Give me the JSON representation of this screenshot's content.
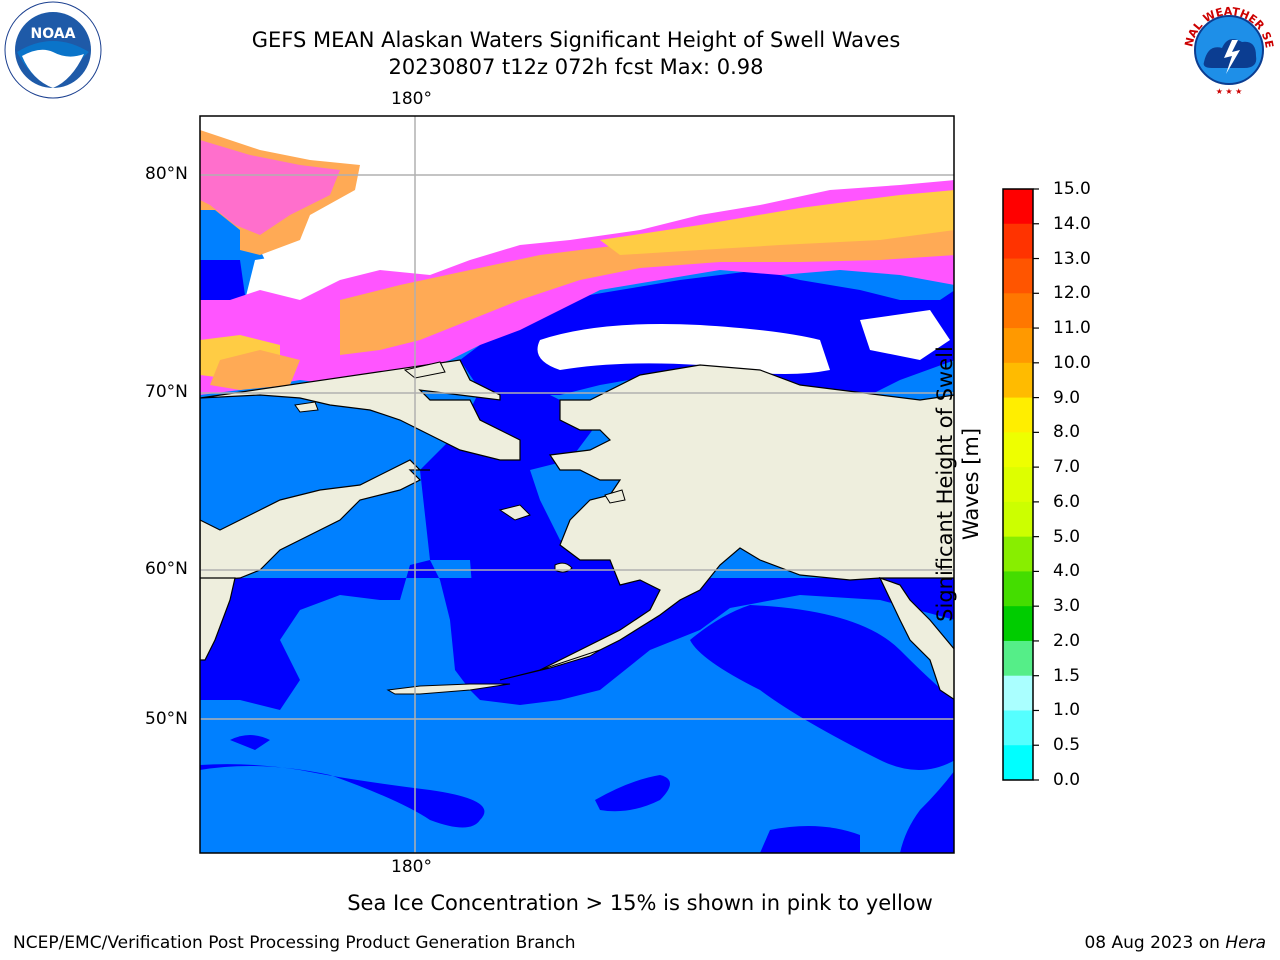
{
  "title": {
    "line1": "GEFS MEAN Alaskan Waters Significant Height of Swell Waves",
    "line2": "20230807 t12z 072h fcst   Max: 0.98"
  },
  "map": {
    "lon_label_top": "180°",
    "lon_label_bottom": "180°",
    "lat_labels": [
      "80°N",
      "70°N",
      "60°N",
      "50°N"
    ],
    "colors": {
      "land": "#eeeedd",
      "swell_0_0_5": "#0000ff",
      "swell_0_5_1_0": "#0080ff",
      "ice_pink": "#ff55ff",
      "ice_orange": "#ffaa55",
      "ice_yellow": "#ffcc44"
    }
  },
  "colorbar": {
    "label": "Significant Height of Swell Waves [m]",
    "ticks": [
      "15.0",
      "14.0",
      "13.0",
      "12.0",
      "11.0",
      "10.0",
      "9.0",
      "8.0",
      "7.0",
      "6.0",
      "5.0",
      "4.0",
      "3.0",
      "2.0",
      "1.5",
      "1.0",
      "0.5",
      "0.0"
    ],
    "colors": [
      "#ff0000",
      "#ff3300",
      "#ff5500",
      "#ff7700",
      "#ff9900",
      "#ffbb00",
      "#ffee00",
      "#eeff00",
      "#ddff00",
      "#ccff00",
      "#88ee00",
      "#44dd00",
      "#00cc00",
      "#55ee88",
      "#aaffff",
      "#55ffff",
      "#00ffff",
      "#0080ff",
      "#0000ff"
    ]
  },
  "ice_note": "Sea Ice Concentration > 15% is shown in pink to yellow",
  "footer": {
    "left": "NCEP/EMC/Verification Post Processing Product Generation Branch",
    "right_date": "08 Aug 2023 on ",
    "right_machine": "Hera"
  },
  "logos": {
    "noaa_text": "NOAA",
    "nws_text": "NATIONAL WEATHER SERVICE"
  }
}
